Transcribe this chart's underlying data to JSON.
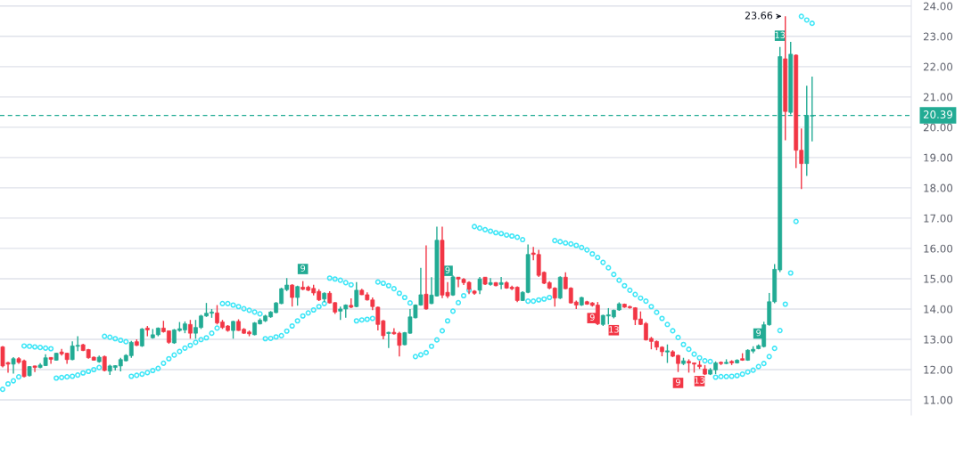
{
  "chart_data": {
    "type": "candlestick",
    "categories": [
      null,
      null,
      null,
      null,
      null,
      null,
      null,
      null,
      null,
      null,
      null,
      null,
      null,
      null,
      null,
      null,
      null,
      null,
      null,
      null,
      null,
      null,
      null,
      null,
      null,
      null,
      null,
      null,
      null,
      null,
      null,
      null,
      null,
      null,
      null,
      null,
      null,
      null,
      null,
      null,
      null,
      null,
      null,
      null,
      null,
      null,
      null,
      null,
      null,
      null,
      null,
      null,
      null,
      null,
      null,
      null,
      null,
      null,
      null,
      null,
      null,
      null,
      null,
      null,
      null,
      null,
      null,
      null,
      null,
      null,
      null,
      null,
      null,
      null,
      null,
      null,
      null,
      null,
      null,
      null,
      null,
      null,
      null,
      null,
      null,
      null,
      null,
      null,
      null,
      null,
      null,
      null,
      null,
      null,
      null,
      null,
      null,
      null,
      null,
      null,
      null,
      null,
      null,
      null,
      null,
      null,
      null,
      null,
      null,
      null,
      null,
      null,
      null,
      null,
      null,
      null,
      null,
      null,
      null,
      null,
      null,
      null,
      null,
      null,
      null,
      null,
      null,
      null,
      null,
      null,
      null,
      null,
      null,
      null,
      null,
      null,
      null,
      null,
      null,
      null,
      null,
      null,
      null,
      null,
      null,
      null,
      null,
      null,
      null,
      null,
      null,
      null,
      null,
      null,
      null,
      null,
      null,
      null,
      null,
      null,
      null,
      null,
      null,
      null,
      null,
      null,
      null,
      null,
      null,
      null
    ],
    "ohlc": [
      [
        12.75,
        12.78,
        12.07,
        12.12
      ],
      [
        12.23,
        12.26,
        11.9,
        12.18
      ],
      [
        12.18,
        12.41,
        11.87,
        12.36
      ],
      [
        12.36,
        12.41,
        12.19,
        12.24
      ],
      [
        12.29,
        12.33,
        11.74,
        11.77
      ],
      [
        11.8,
        12.12,
        11.77,
        12.1
      ],
      [
        12.12,
        12.13,
        11.92,
        12.07
      ],
      [
        12.07,
        12.21,
        12.04,
        12.15
      ],
      [
        12.13,
        12.51,
        12.12,
        12.39
      ],
      [
        12.4,
        12.41,
        12.19,
        12.34
      ],
      [
        12.31,
        12.56,
        12.29,
        12.54
      ],
      [
        12.58,
        12.68,
        12.46,
        12.52
      ],
      [
        12.54,
        12.56,
        12.19,
        12.33
      ],
      [
        12.33,
        12.93,
        12.31,
        12.78
      ],
      [
        12.77,
        13.1,
        12.61,
        12.8
      ],
      [
        12.82,
        12.85,
        12.61,
        12.63
      ],
      [
        12.66,
        12.68,
        12.36,
        12.39
      ],
      [
        12.41,
        12.43,
        12.29,
        12.31
      ],
      [
        12.26,
        12.46,
        12.23,
        12.41
      ],
      [
        12.43,
        12.46,
        11.94,
        11.97
      ],
      [
        11.95,
        12.16,
        11.82,
        12.12
      ],
      [
        12.07,
        12.15,
        11.97,
        12.13
      ],
      [
        12.12,
        12.39,
        11.94,
        12.33
      ],
      [
        12.29,
        12.51,
        12.27,
        12.47
      ],
      [
        12.46,
        12.95,
        12.39,
        12.9
      ],
      [
        12.92,
        13.0,
        12.78,
        12.8
      ],
      [
        12.78,
        13.37,
        12.75,
        13.34
      ],
      [
        13.37,
        13.44,
        13.1,
        13.31
      ],
      [
        13.05,
        13.34,
        13.02,
        13.15
      ],
      [
        13.15,
        13.39,
        13.1,
        13.37
      ],
      [
        13.37,
        13.61,
        13.22,
        13.25
      ],
      [
        13.28,
        13.29,
        12.85,
        12.9
      ],
      [
        12.88,
        13.34,
        12.85,
        13.31
      ],
      [
        13.29,
        13.57,
        13.25,
        13.35
      ],
      [
        13.31,
        13.59,
        13.2,
        13.51
      ],
      [
        13.49,
        13.64,
        13.02,
        13.2
      ],
      [
        13.2,
        13.64,
        13.02,
        13.39
      ],
      [
        13.39,
        13.81,
        13.34,
        13.77
      ],
      [
        13.77,
        14.2,
        13.74,
        13.86
      ],
      [
        13.86,
        14.0,
        13.71,
        13.9
      ],
      [
        13.87,
        14.13,
        13.49,
        13.54
      ],
      [
        13.57,
        13.64,
        13.34,
        13.39
      ],
      [
        13.44,
        13.47,
        13.25,
        13.29
      ],
      [
        13.29,
        13.61,
        13.02,
        13.59
      ],
      [
        13.59,
        13.66,
        13.28,
        13.29
      ],
      [
        13.33,
        13.37,
        13.18,
        13.2
      ],
      [
        13.24,
        13.29,
        13.1,
        13.18
      ],
      [
        13.15,
        13.57,
        13.13,
        13.54
      ],
      [
        13.51,
        13.69,
        13.49,
        13.63
      ],
      [
        13.61,
        13.81,
        13.57,
        13.77
      ],
      [
        13.74,
        13.93,
        13.71,
        13.9
      ],
      [
        13.88,
        14.23,
        13.86,
        14.2
      ],
      [
        14.18,
        14.7,
        14.16,
        14.67
      ],
      [
        14.64,
        15.02,
        14.59,
        14.79
      ],
      [
        14.79,
        14.82,
        14.08,
        14.38
      ],
      [
        14.38,
        14.77,
        14.11,
        14.74
      ],
      [
        14.72,
        14.92,
        14.62,
        14.65
      ],
      [
        14.72,
        14.77,
        14.59,
        14.62
      ],
      [
        14.68,
        14.8,
        14.45,
        14.53
      ],
      [
        14.58,
        14.65,
        14.26,
        14.3
      ],
      [
        14.33,
        14.55,
        14.23,
        14.52
      ],
      [
        14.52,
        14.59,
        14.18,
        14.2
      ],
      [
        14.21,
        14.23,
        13.84,
        13.9
      ],
      [
        13.93,
        14.08,
        13.64,
        14.0
      ],
      [
        14.0,
        14.15,
        13.71,
        14.13
      ],
      [
        14.12,
        14.35,
        14.03,
        14.06
      ],
      [
        14.08,
        14.89,
        14.06,
        14.62
      ],
      [
        14.62,
        14.67,
        14.46,
        14.47
      ],
      [
        14.47,
        14.55,
        14.28,
        14.3
      ],
      [
        14.3,
        14.38,
        13.96,
        14.08
      ],
      [
        14.06,
        14.08,
        13.29,
        13.49
      ],
      [
        13.61,
        13.64,
        13.0,
        13.12
      ],
      [
        13.19,
        13.25,
        12.71,
        13.23
      ],
      [
        13.23,
        13.37,
        13.15,
        13.18
      ],
      [
        13.2,
        13.25,
        12.43,
        12.8
      ],
      [
        12.82,
        13.24,
        12.8,
        13.22
      ],
      [
        13.2,
        14.0,
        13.18,
        13.74
      ],
      [
        13.71,
        14.15,
        13.69,
        14.13
      ],
      [
        14.13,
        15.36,
        14.11,
        14.47
      ],
      [
        14.49,
        16.1,
        13.98,
        14.0
      ],
      [
        14.18,
        15.05,
        14.16,
        14.46
      ],
      [
        14.43,
        16.72,
        14.41,
        16.27
      ],
      [
        16.27,
        16.72,
        14.36,
        14.46
      ],
      [
        14.55,
        14.89,
        14.36,
        14.43
      ],
      [
        14.46,
        15.11,
        14.43,
        15.06
      ],
      [
        15.05,
        15.06,
        14.72,
        14.99
      ],
      [
        14.98,
        15.02,
        14.79,
        14.87
      ],
      [
        14.88,
        14.92,
        14.49,
        14.65
      ],
      [
        14.59,
        14.62,
        14.47,
        14.52
      ],
      [
        14.62,
        15.06,
        14.49,
        14.99
      ],
      [
        15.05,
        15.06,
        14.79,
        14.82
      ],
      [
        14.81,
        15.02,
        14.77,
        14.87
      ],
      [
        14.87,
        14.89,
        14.75,
        14.77
      ],
      [
        14.81,
        15.06,
        14.65,
        14.87
      ],
      [
        14.87,
        14.92,
        14.67,
        14.69
      ],
      [
        14.72,
        14.77,
        14.62,
        14.67
      ],
      [
        14.72,
        14.75,
        14.23,
        14.28
      ],
      [
        14.28,
        14.59,
        14.26,
        14.55
      ],
      [
        14.55,
        16.13,
        14.52,
        15.8
      ],
      [
        15.85,
        16.05,
        15.61,
        15.8
      ],
      [
        15.8,
        15.95,
        15.06,
        15.11
      ],
      [
        15.21,
        15.24,
        14.82,
        14.85
      ],
      [
        14.87,
        14.92,
        14.65,
        14.69
      ],
      [
        14.69,
        14.72,
        14.08,
        14.36
      ],
      [
        14.36,
        15.08,
        14.33,
        15.05
      ],
      [
        15.05,
        15.21,
        14.65,
        14.67
      ],
      [
        14.69,
        14.72,
        14.18,
        14.2
      ],
      [
        14.23,
        14.28,
        14.0,
        14.13
      ],
      [
        14.13,
        14.4,
        14.1,
        14.38
      ],
      [
        14.24,
        14.27,
        14.14,
        14.16
      ],
      [
        14.2,
        14.23,
        14.08,
        14.12
      ],
      [
        14.13,
        14.23,
        13.47,
        13.51
      ],
      [
        13.49,
        13.81,
        13.44,
        13.79
      ],
      [
        13.77,
        14.03,
        13.49,
        13.81
      ],
      [
        13.74,
        13.98,
        13.69,
        13.96
      ],
      [
        13.97,
        14.22,
        13.94,
        14.17
      ],
      [
        14.16,
        14.18,
        14.04,
        14.06
      ],
      [
        14.08,
        14.11,
        14.01,
        14.04
      ],
      [
        14.04,
        14.06,
        13.47,
        13.65
      ],
      [
        13.67,
        13.92,
        13.47,
        13.49
      ],
      [
        13.52,
        13.57,
        12.96,
        12.98
      ],
      [
        13.03,
        13.08,
        12.67,
        12.93
      ],
      [
        12.93,
        12.96,
        12.64,
        12.74
      ],
      [
        12.74,
        12.77,
        12.44,
        12.59
      ],
      [
        12.58,
        12.83,
        12.22,
        12.62
      ],
      [
        12.59,
        12.64,
        12.41,
        12.44
      ],
      [
        12.47,
        12.49,
        11.92,
        12.2
      ],
      [
        12.2,
        12.39,
        12.15,
        12.29
      ],
      [
        12.27,
        12.34,
        11.9,
        12.22
      ],
      [
        12.22,
        12.23,
        11.9,
        12.18
      ],
      [
        12.15,
        12.29,
        12.02,
        12.1
      ],
      [
        12.02,
        12.15,
        11.82,
        11.85
      ],
      [
        11.85,
        12.05,
        11.82,
        11.99
      ],
      [
        11.99,
        12.27,
        11.85,
        12.22
      ],
      [
        12.24,
        12.27,
        12.15,
        12.2
      ],
      [
        12.2,
        12.34,
        12.18,
        12.24
      ],
      [
        12.27,
        12.31,
        12.15,
        12.22
      ],
      [
        12.22,
        12.34,
        12.2,
        12.31
      ],
      [
        12.36,
        12.54,
        12.29,
        12.31
      ],
      [
        12.31,
        12.67,
        12.29,
        12.64
      ],
      [
        12.61,
        12.77,
        12.54,
        12.67
      ],
      [
        12.69,
        12.83,
        12.67,
        12.79
      ],
      [
        12.76,
        13.58,
        12.73,
        13.48
      ],
      [
        13.48,
        14.53,
        13.45,
        14.24
      ],
      [
        14.24,
        15.48,
        14.19,
        15.31
      ],
      [
        15.29,
        22.65,
        15.22,
        22.33
      ],
      [
        22.26,
        23.66,
        19.57,
        20.52
      ],
      [
        20.49,
        22.82,
        20.42,
        22.41
      ],
      [
        22.38,
        22.41,
        18.65,
        19.24
      ],
      [
        19.24,
        19.96,
        17.96,
        18.8
      ],
      [
        18.8,
        21.37,
        18.39,
        20.39
      ],
      [
        20.37,
        21.67,
        19.53,
        20.39
      ],
      null,
      null,
      null,
      null,
      null,
      null,
      null,
      null,
      null,
      null,
      null,
      null,
      null,
      null,
      null,
      null,
      null,
      null
    ],
    "colors": [
      "#f23645",
      "#f23645",
      "#22ab94",
      "#f23645",
      "#f23645",
      "#22ab94",
      "#f23645",
      "#22ab94",
      "#22ab94",
      "#f23645",
      "#22ab94",
      "#f23645",
      "#f23645",
      "#22ab94",
      "#22ab94",
      "#f23645",
      "#f23645",
      "#f23645",
      "#22ab94",
      "#f23645",
      "#22ab94",
      "#22ab94",
      "#22ab94",
      "#22ab94",
      "#22ab94",
      "#f23645",
      "#22ab94",
      "#f23645",
      "#22ab94",
      "#22ab94",
      "#f23645",
      "#f23645",
      "#22ab94",
      "#22ab94",
      "#22ab94",
      "#f23645",
      "#22ab94",
      "#22ab94",
      "#22ab94",
      "#22ab94",
      "#f23645",
      "#f23645",
      "#f23645",
      "#22ab94",
      "#f23645",
      "#f23645",
      "#f23645",
      "#22ab94",
      "#22ab94",
      "#22ab94",
      "#22ab94",
      "#22ab94",
      "#22ab94",
      "#22ab94",
      "#f23645",
      "#22ab94",
      "#f23645",
      "#f23645",
      "#f23645",
      "#f23645",
      "#22ab94",
      "#f23645",
      "#f23645",
      "#22ab94",
      "#22ab94",
      "#f23645",
      "#22ab94",
      "#f23645",
      "#f23645",
      "#f23645",
      "#f23645",
      "#f23645",
      "#22ab94",
      "#f23645",
      "#f23645",
      "#22ab94",
      "#22ab94",
      "#22ab94",
      "#22ab94",
      "#f23645",
      "#22ab94",
      "#22ab94",
      "#f23645",
      "#f23645",
      "#22ab94",
      "#f23645",
      "#f23645",
      "#f23645",
      "#f23645",
      "#22ab94",
      "#f23645",
      "#22ab94",
      "#f23645",
      "#22ab94",
      "#f23645",
      "#f23645",
      "#f23645",
      "#22ab94",
      "#22ab94",
      "#f23645",
      "#f23645",
      "#f23645",
      "#f23645",
      "#f23645",
      "#22ab94",
      "#f23645",
      "#f23645",
      "#f23645",
      "#22ab94",
      "#f23645",
      "#f23645",
      "#f23645",
      "#22ab94",
      "#22ab94",
      "#22ab94",
      "#22ab94",
      "#f23645",
      "#f23645",
      "#f23645",
      "#f23645",
      "#f23645",
      "#f23645",
      "#f23645",
      "#f23645",
      "#22ab94",
      "#f23645",
      "#f23645",
      "#22ab94",
      "#f23645",
      "#f23645",
      "#f23645",
      "#f23645",
      "#22ab94",
      "#22ab94",
      "#f23645",
      "#22ab94",
      "#f23645",
      "#22ab94",
      "#f23645",
      "#22ab94",
      "#22ab94",
      "#22ab94",
      "#22ab94",
      "#22ab94",
      "#22ab94",
      "#22ab94",
      "#f23645",
      "#22ab94",
      "#f23645",
      "#f23645",
      "#22ab94",
      "#22ab94",
      null,
      null,
      null,
      null,
      null,
      null,
      null,
      null,
      null,
      null,
      null,
      null,
      null,
      null,
      null,
      null,
      null,
      null
    ],
    "series": [
      {
        "type": "scatter",
        "marker": "circle",
        "color": "#3ee6f7",
        "values": [
          11.35,
          11.53,
          11.63,
          11.76,
          12.78,
          12.77,
          12.75,
          12.73,
          12.71,
          12.69,
          11.72,
          11.74,
          11.76,
          11.78,
          11.82,
          11.89,
          11.94,
          12.0,
          12.07,
          13.1,
          13.07,
          13.02,
          12.97,
          12.92,
          11.78,
          11.81,
          11.85,
          11.9,
          11.97,
          12.04,
          12.21,
          12.36,
          12.48,
          12.6,
          12.71,
          12.8,
          12.9,
          12.99,
          13.05,
          13.2,
          13.37,
          14.18,
          14.18,
          14.13,
          14.08,
          14.01,
          13.96,
          13.9,
          13.84,
          13.02,
          13.03,
          13.08,
          13.12,
          13.27,
          13.44,
          13.61,
          13.77,
          13.87,
          13.97,
          14.08,
          14.18,
          15.02,
          14.99,
          14.95,
          14.87,
          14.8,
          13.61,
          13.64,
          13.66,
          13.69,
          14.89,
          14.85,
          14.77,
          14.67,
          14.52,
          14.38,
          14.2,
          12.43,
          12.49,
          12.56,
          12.77,
          12.98,
          13.28,
          13.61,
          13.93,
          14.21,
          14.44,
          14.62,
          16.72,
          16.67,
          16.62,
          16.57,
          16.52,
          16.49,
          16.44,
          16.41,
          16.37,
          16.29,
          14.26,
          14.26,
          14.3,
          14.33,
          14.38,
          16.26,
          16.22,
          16.18,
          16.15,
          16.1,
          16.03,
          15.95,
          15.82,
          15.7,
          15.54,
          15.36,
          15.14,
          14.95,
          14.77,
          14.62,
          14.48,
          14.36,
          14.26,
          14.08,
          13.89,
          13.69,
          13.49,
          13.28,
          13.06,
          12.83,
          12.67,
          12.51,
          12.39,
          12.29,
          12.27,
          11.75,
          11.77,
          11.77,
          11.78,
          11.8,
          11.85,
          11.92,
          11.98,
          12.1,
          12.2,
          12.43,
          12.7,
          13.29,
          14.16,
          15.19,
          16.89,
          23.66,
          23.54,
          23.43,
          null,
          null,
          null,
          null,
          null,
          null,
          null,
          null,
          null,
          null,
          null,
          null,
          null,
          null,
          null,
          null,
          null,
          null
        ]
      },
      {
        "type": "scatter",
        "marker": "square",
        "color": "#22ab94",
        "values": [
          null,
          null,
          null,
          null,
          null,
          null,
          null,
          null,
          null,
          null,
          null,
          null,
          null,
          null,
          null,
          null,
          null,
          null,
          null,
          null,
          null,
          null,
          null,
          null,
          null,
          null,
          null,
          null,
          null,
          null,
          null,
          null,
          null,
          null,
          null,
          null,
          null,
          null,
          null,
          null,
          null,
          null,
          null,
          null,
          null,
          null,
          null,
          null,
          null,
          null,
          null,
          null,
          null,
          null,
          null,
          null,
          15.32,
          null,
          null,
          null,
          null,
          null,
          null,
          null,
          null,
          null,
          null,
          null,
          null,
          null,
          null,
          null,
          null,
          null,
          null,
          null,
          null,
          null,
          null,
          null,
          null,
          null,
          null,
          15.26,
          null,
          null,
          null,
          null,
          null,
          null,
          null,
          null,
          null,
          null,
          null,
          null,
          null,
          null,
          null,
          null,
          null,
          null,
          null,
          null,
          null,
          null,
          null,
          null,
          null,
          null,
          null,
          null,
          null,
          null,
          null,
          null,
          null,
          null,
          null,
          null,
          null,
          null,
          null,
          null,
          null,
          null,
          null,
          null,
          null,
          null,
          null,
          null,
          null,
          null,
          null,
          null,
          null,
          null,
          null,
          null,
          null,
          13.19,
          null,
          null,
          null,
          23.02,
          null,
          null,
          null,
          null,
          null,
          null,
          null,
          null,
          null,
          null,
          null,
          null,
          null,
          null,
          null,
          null,
          null,
          null,
          null,
          null,
          null,
          null,
          null,
          null
        ]
      },
      {
        "type": "scatter",
        "marker": "square",
        "color": "#f23645",
        "values": [
          null,
          null,
          null,
          null,
          null,
          null,
          null,
          null,
          null,
          null,
          null,
          null,
          null,
          null,
          null,
          null,
          null,
          null,
          null,
          null,
          null,
          null,
          null,
          null,
          null,
          null,
          null,
          null,
          null,
          null,
          null,
          null,
          null,
          null,
          null,
          null,
          null,
          null,
          null,
          null,
          null,
          null,
          null,
          null,
          null,
          null,
          null,
          null,
          null,
          null,
          null,
          null,
          null,
          null,
          null,
          null,
          null,
          null,
          null,
          null,
          null,
          null,
          null,
          null,
          null,
          null,
          null,
          null,
          null,
          null,
          null,
          null,
          null,
          null,
          null,
          null,
          null,
          null,
          null,
          null,
          null,
          null,
          null,
          null,
          null,
          null,
          null,
          null,
          null,
          null,
          null,
          null,
          null,
          null,
          null,
          null,
          null,
          null,
          null,
          null,
          null,
          null,
          null,
          null,
          null,
          null,
          null,
          null,
          null,
          null,
          13.7,
          null,
          null,
          null,
          13.3,
          null,
          null,
          null,
          null,
          null,
          null,
          null,
          null,
          null,
          null,
          null,
          11.56,
          null,
          null,
          null,
          11.62,
          null,
          null,
          null,
          null,
          null,
          null,
          null,
          null,
          null,
          null,
          null,
          null,
          null,
          null,
          null,
          null,
          null,
          null,
          null,
          null,
          null,
          null,
          null,
          null,
          null,
          null,
          null,
          null,
          null,
          null,
          null,
          null,
          null,
          null,
          null,
          null,
          null,
          null,
          null
        ]
      }
    ],
    "ylim": [
      10.5,
      24.2
    ],
    "yticks": [
      {
        "value": 11,
        "label": "11.00"
      },
      {
        "value": 12,
        "label": "12.00"
      },
      {
        "value": 13,
        "label": "13.00"
      },
      {
        "value": 14,
        "label": "14.00"
      },
      {
        "value": 15,
        "label": "15.00"
      },
      {
        "value": 16,
        "label": "16.00"
      },
      {
        "value": 17,
        "label": "17.00"
      },
      {
        "value": 18,
        "label": "18.00"
      },
      {
        "value": 19,
        "label": "19.00"
      },
      {
        "value": 20,
        "label": "20.00"
      },
      {
        "value": 21,
        "label": "21.00"
      },
      {
        "value": 22,
        "label": "22.00"
      },
      {
        "value": 23,
        "label": "23.00"
      },
      {
        "value": 24,
        "label": "24.00"
      }
    ],
    "tick_labels": "y",
    "grid": "y",
    "ref_lines": [
      {
        "axis": "y",
        "value": 20.39,
        "label": "20.39",
        "color": "#22ab94",
        "line_style": "dashed"
      }
    ],
    "annotations": [
      "23.66",
      {
        "text": "9",
        "y": 15.32
      },
      {
        "text": "9",
        "y": 15.26
      },
      {
        "text": "9",
        "y": 13.19
      },
      {
        "text": "13",
        "y": 23.02
      },
      {
        "text": "9",
        "y": 13.7
      },
      {
        "text": "13",
        "y": 13.3
      },
      {
        "text": "9",
        "y": 11.56
      },
      {
        "text": "13",
        "y": 11.62
      }
    ]
  }
}
